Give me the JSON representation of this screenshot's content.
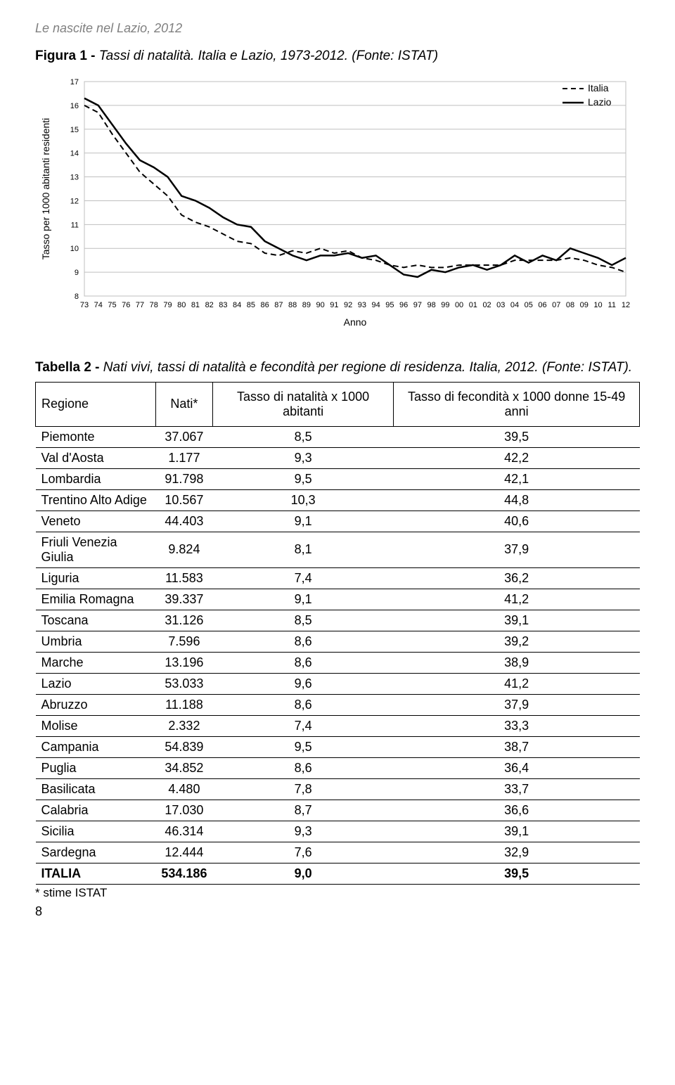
{
  "header": "Le nascite nel Lazio, 2012",
  "figure": {
    "label_bold": "Figura 1 - ",
    "label_ital": "Tassi di natalità. Italia e Lazio, 1973-2012. (Fonte: ISTAT)"
  },
  "chart": {
    "type": "line",
    "ylabel": "Tasso per 1000 abitanti residenti",
    "xlabel": "Anno",
    "ylim": [
      8,
      17
    ],
    "ytick_step": 1,
    "yticks": [
      8,
      9,
      10,
      11,
      12,
      13,
      14,
      15,
      16,
      17
    ],
    "xticks": [
      "73",
      "74",
      "75",
      "76",
      "77",
      "78",
      "79",
      "80",
      "81",
      "82",
      "83",
      "84",
      "85",
      "86",
      "87",
      "88",
      "89",
      "90",
      "91",
      "92",
      "93",
      "94",
      "95",
      "96",
      "97",
      "98",
      "99",
      "00",
      "01",
      "02",
      "03",
      "04",
      "05",
      "06",
      "07",
      "08",
      "09",
      "10",
      "11",
      "12"
    ],
    "legend": {
      "position": "top-right",
      "items": [
        {
          "label": "Italia",
          "style": "dashed",
          "color": "#000000"
        },
        {
          "label": "Lazio",
          "style": "solid",
          "color": "#000000"
        }
      ]
    },
    "series": {
      "italia": {
        "style": "dashed",
        "color": "#000000",
        "line_width": 2,
        "values": [
          16.0,
          15.7,
          14.8,
          14.0,
          13.2,
          12.7,
          12.2,
          11.4,
          11.1,
          10.9,
          10.6,
          10.3,
          10.2,
          9.8,
          9.7,
          9.9,
          9.8,
          10.0,
          9.8,
          9.9,
          9.6,
          9.5,
          9.3,
          9.2,
          9.3,
          9.2,
          9.2,
          9.3,
          9.3,
          9.3,
          9.3,
          9.5,
          9.5,
          9.5,
          9.5,
          9.6,
          9.5,
          9.3,
          9.2,
          9.0
        ]
      },
      "lazio": {
        "style": "solid",
        "color": "#000000",
        "line_width": 2.5,
        "values": [
          16.3,
          16.0,
          15.2,
          14.4,
          13.7,
          13.4,
          13.0,
          12.2,
          12.0,
          11.7,
          11.3,
          11.0,
          10.9,
          10.3,
          10.0,
          9.7,
          9.5,
          9.7,
          9.7,
          9.8,
          9.6,
          9.7,
          9.3,
          8.9,
          8.8,
          9.1,
          9.0,
          9.2,
          9.3,
          9.1,
          9.3,
          9.7,
          9.4,
          9.7,
          9.5,
          10.0,
          9.8,
          9.6,
          9.3,
          9.6
        ]
      }
    },
    "grid_color": "#bfbfbf",
    "axis_color": "#000000",
    "background_color": "#ffffff",
    "label_fontsize": 14,
    "tick_fontsize": 11,
    "legend_fontsize": 14
  },
  "table_title": {
    "bold": "Tabella 2 - ",
    "ital": "Nati vivi, tassi di natalità e fecondità per regione di residenza. Italia, 2012. (Fonte: ISTAT)."
  },
  "table": {
    "columns": [
      "Regione",
      "Nati*",
      "Tasso di natalità x 1000 abitanti",
      "Tasso di fecondità x 1000 donne 15-49 anni"
    ],
    "rows": [
      [
        "Piemonte",
        "37.067",
        "8,5",
        "39,5"
      ],
      [
        "Val d'Aosta",
        "1.177",
        "9,3",
        "42,2"
      ],
      [
        "Lombardia",
        "91.798",
        "9,5",
        "42,1"
      ],
      [
        "Trentino Alto Adige",
        "10.567",
        "10,3",
        "44,8"
      ],
      [
        "Veneto",
        "44.403",
        "9,1",
        "40,6"
      ],
      [
        "Friuli Venezia Giulia",
        "9.824",
        "8,1",
        "37,9"
      ],
      [
        "Liguria",
        "11.583",
        "7,4",
        "36,2"
      ],
      [
        "Emilia Romagna",
        "39.337",
        "9,1",
        "41,2"
      ],
      [
        "Toscana",
        "31.126",
        "8,5",
        "39,1"
      ],
      [
        "Umbria",
        "7.596",
        "8,6",
        "39,2"
      ],
      [
        "Marche",
        "13.196",
        "8,6",
        "38,9"
      ],
      [
        "Lazio",
        "53.033",
        "9,6",
        "41,2"
      ],
      [
        "Abruzzo",
        "11.188",
        "8,6",
        "37,9"
      ],
      [
        "Molise",
        "2.332",
        "7,4",
        "33,3"
      ],
      [
        "Campania",
        "54.839",
        "9,5",
        "38,7"
      ],
      [
        "Puglia",
        "34.852",
        "8,6",
        "36,4"
      ],
      [
        "Basilicata",
        "4.480",
        "7,8",
        "33,7"
      ],
      [
        "Calabria",
        "17.030",
        "8,7",
        "36,6"
      ],
      [
        "Sicilia",
        "46.314",
        "9,3",
        "39,1"
      ],
      [
        "Sardegna",
        "12.444",
        "7,6",
        "32,9"
      ]
    ],
    "total_row": [
      "ITALIA",
      "534.186",
      "9,0",
      "39,5"
    ]
  },
  "footnote": "* stime ISTAT",
  "page_number": "8"
}
